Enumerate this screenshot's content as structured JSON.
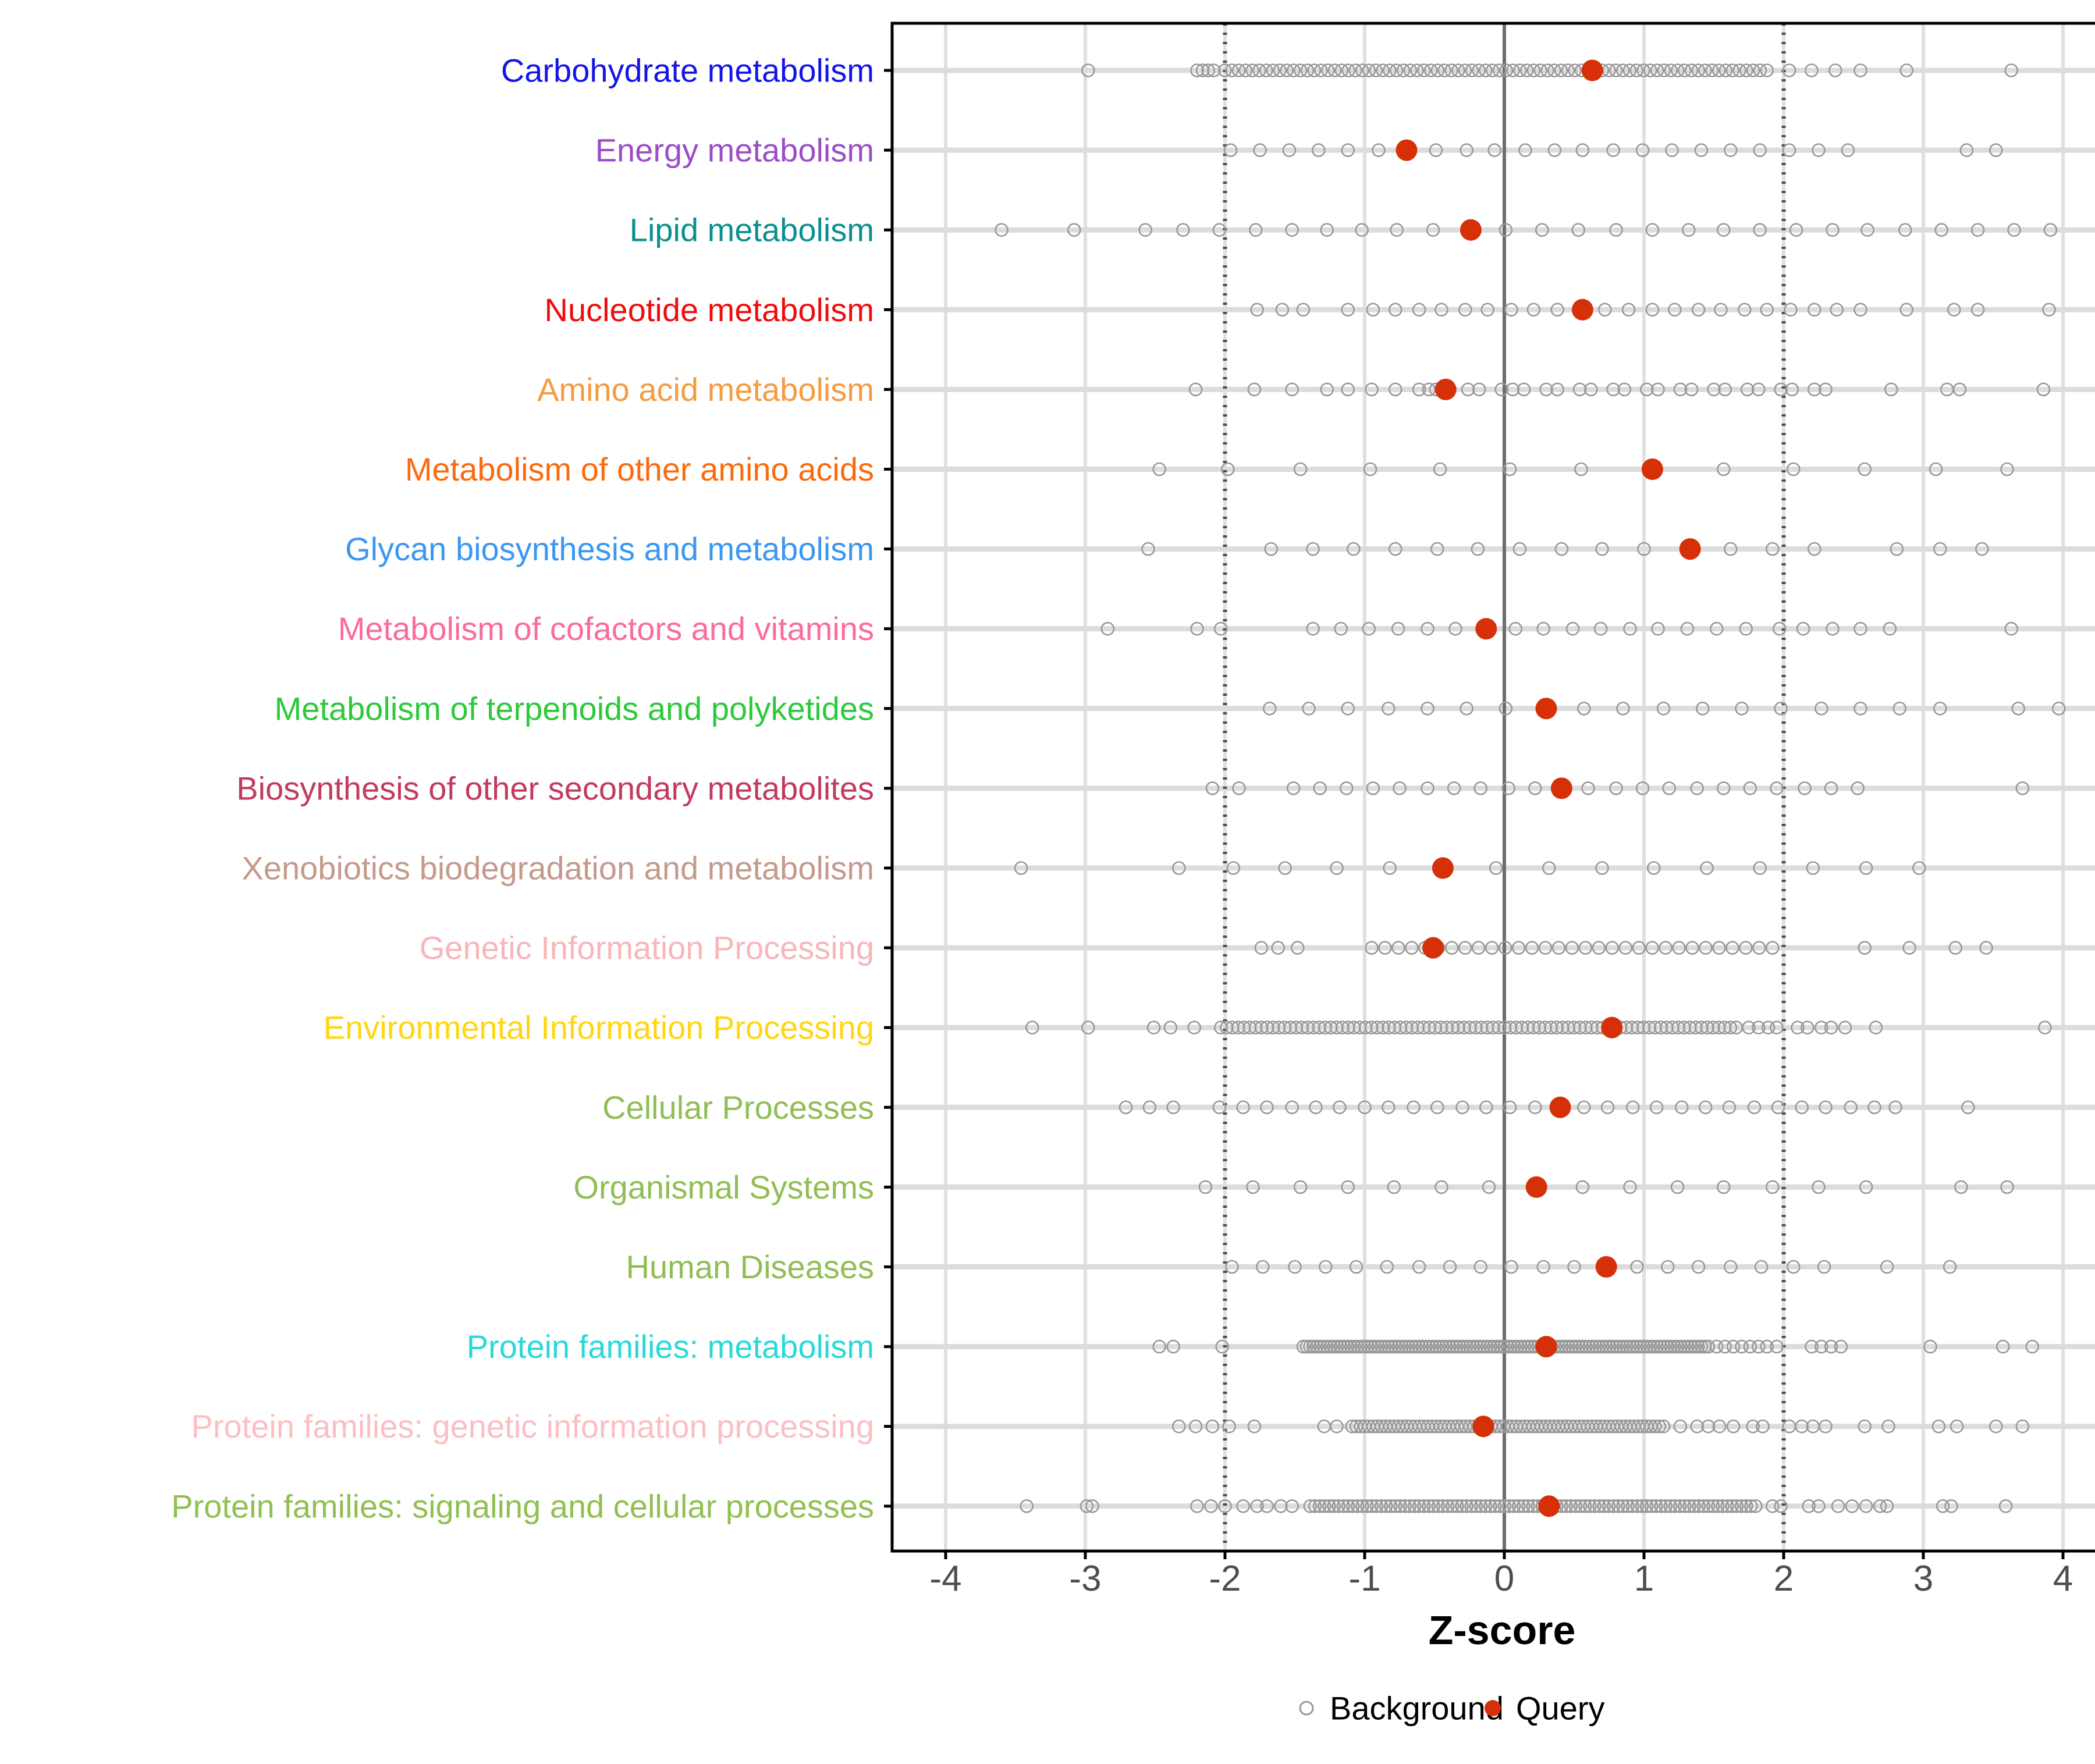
{
  "chart_data": {
    "type": "scatter",
    "title": "",
    "xlabel": "Z-score",
    "xlim": [
      -4.4,
      4.35
    ],
    "x_ticks": [
      -4,
      -3,
      -2,
      -1,
      0,
      1,
      2,
      3,
      4
    ],
    "grid": "on",
    "vlines": [
      {
        "x": -2,
        "style": "dotted"
      },
      {
        "x": 0,
        "style": "solid"
      },
      {
        "x": 2,
        "style": "dotted"
      }
    ],
    "legend_position": "bottom",
    "legend": [
      {
        "label": "Background",
        "marker": "open-circle",
        "color": "#999999"
      },
      {
        "label": "Query",
        "marker": "filled-circle",
        "color": "#D63009"
      }
    ],
    "style_colors": {
      "background_stroke": "#999999",
      "query_fill": "#D63009",
      "gridline": "#E0E0E0",
      "row_gridline": "#DCDCDC",
      "zero_line": "#6E6E6E",
      "dotted_line": "#4D4D4D",
      "tick_label": "#4D4D4D",
      "panel_border": "#000000"
    },
    "rows": [
      {
        "label": "Carbohydrate metabolism",
        "label_color": "#1414E8",
        "query": 0.63,
        "background_points": [
          -2.98,
          2.04,
          2.2,
          2.37,
          2.55,
          2.88,
          3.63
        ],
        "background_bands": [
          [
            -2.2,
            -2.08,
            4
          ],
          [
            -2.0,
            1.88,
            80
          ]
        ]
      },
      {
        "label": "Energy metabolism",
        "label_color": "#9B4DC8",
        "query": -0.7,
        "background_points": [
          -1.96,
          -1.75,
          -1.54,
          -1.33,
          -1.12,
          -0.9,
          -0.49,
          -0.27,
          -0.07,
          0.15,
          0.36,
          0.56,
          0.78,
          0.99,
          1.2,
          1.41,
          1.62,
          1.83,
          2.04,
          2.25,
          2.46,
          3.31,
          3.52
        ],
        "background_bands": []
      },
      {
        "label": "Lipid metabolism",
        "label_color": "#0A8F8F",
        "query": -0.24,
        "background_points": [
          -3.6,
          -3.08,
          -2.57,
          -2.3,
          -2.04,
          -1.78,
          -1.52,
          -1.27,
          -1.02,
          -0.77,
          -0.51,
          0.01,
          0.27,
          0.53,
          0.8,
          1.06,
          1.32,
          1.57,
          1.83,
          2.09,
          2.35,
          2.6,
          2.87,
          3.13,
          3.39,
          3.65,
          3.91
        ],
        "background_bands": []
      },
      {
        "label": "Nucleotide metabolism",
        "label_color": "#F00C0C",
        "query": 0.56,
        "background_points": [
          -1.77,
          -1.59,
          -1.44,
          -1.12,
          -0.94,
          -0.78,
          -0.61,
          -0.45,
          -0.28,
          -0.12,
          0.05,
          0.21,
          0.38,
          0.72,
          0.89,
          1.06,
          1.22,
          1.39,
          1.55,
          1.72,
          1.88,
          2.05,
          2.22,
          2.38,
          2.55,
          2.88,
          3.22,
          3.39,
          3.9
        ],
        "background_bands": []
      },
      {
        "label": "Amino acid metabolism",
        "label_color": "#F59B40",
        "query": -0.42,
        "background_points": [
          -2.21,
          -1.79,
          -1.52,
          -1.27,
          -1.12,
          -0.95,
          -0.78,
          -0.61,
          -0.54,
          -0.49,
          -0.45,
          -0.26,
          -0.18,
          -0.02,
          0.06,
          0.14,
          0.3,
          0.38,
          0.54,
          0.62,
          0.78,
          0.86,
          1.02,
          1.1,
          1.26,
          1.34,
          1.5,
          1.58,
          1.74,
          1.82,
          1.98,
          2.06,
          2.22,
          2.3,
          2.77,
          3.17,
          3.26,
          3.86
        ],
        "background_bands": []
      },
      {
        "label": "Metabolism of other amino acids",
        "label_color": "#FA6B0F",
        "query": 1.06,
        "background_points": [
          -2.47,
          -1.98,
          -1.46,
          -0.96,
          -0.46,
          0.04,
          0.55,
          1.57,
          2.07,
          2.58,
          3.09,
          3.6
        ],
        "background_bands": []
      },
      {
        "label": "Glycan biosynthesis and metabolism",
        "label_color": "#3B97F2",
        "query": 1.33,
        "background_points": [
          -2.55,
          -1.67,
          -1.37,
          -1.08,
          -0.78,
          -0.48,
          -0.19,
          0.11,
          0.41,
          0.7,
          1.0,
          1.62,
          1.92,
          2.22,
          2.81,
          3.12,
          3.42
        ],
        "background_bands": []
      },
      {
        "label": "Metabolism of cofactors and vitamins",
        "label_color": "#FA6B9F",
        "query": -0.13,
        "background_points": [
          -2.84,
          -2.2,
          -2.03,
          -1.37,
          -1.17,
          -0.97,
          -0.76,
          -0.55,
          -0.35,
          0.08,
          0.28,
          0.49,
          0.69,
          0.9,
          1.1,
          1.31,
          1.52,
          1.73,
          1.97,
          2.14,
          2.35,
          2.55,
          2.76,
          3.63
        ],
        "background_bands": []
      },
      {
        "label": "Metabolism of terpenoids and polyketides",
        "label_color": "#2EC93B",
        "query": 0.3,
        "background_points": [
          -1.68,
          -1.4,
          -1.12,
          -0.83,
          -0.55,
          -0.27,
          0.01,
          0.57,
          0.85,
          1.14,
          1.42,
          1.7,
          1.98,
          2.27,
          2.55,
          2.83,
          3.12,
          3.68,
          3.97
        ],
        "background_bands": []
      },
      {
        "label": "Biosynthesis of other secondary metabolites",
        "label_color": "#C23A60",
        "query": 0.41,
        "background_points": [
          -2.09,
          -1.9,
          -1.51,
          -1.32,
          -1.13,
          -0.94,
          -0.75,
          -0.55,
          -0.36,
          -0.17,
          0.03,
          0.22,
          0.6,
          0.8,
          0.99,
          1.18,
          1.38,
          1.57,
          1.76,
          1.95,
          2.15,
          2.34,
          2.53,
          3.71
        ],
        "background_bands": []
      },
      {
        "label": "Xenobiotics biodegradation and metabolism",
        "label_color": "#C49A8C",
        "query": -0.44,
        "background_points": [
          -3.46,
          -2.33,
          -1.94,
          -1.57,
          -1.2,
          -0.82,
          -0.06,
          0.32,
          0.7,
          1.07,
          1.45,
          1.83,
          2.21,
          2.59,
          2.97
        ],
        "background_bands": []
      },
      {
        "label": "Genetic Information Processing",
        "label_color": "#F7B6B9",
        "query": -0.51,
        "background_points": [
          -1.74,
          -1.62,
          -1.48,
          2.58,
          2.9,
          3.23,
          3.45
        ],
        "background_bands": [
          [
            -0.95,
            1.92,
            31
          ]
        ]
      },
      {
        "label": "Environmental Information Processing",
        "label_color": "#FFD60F",
        "query": 0.77,
        "background_points": [
          -3.38,
          -2.98,
          -2.51,
          -2.39,
          -2.22,
          1.75,
          1.82,
          1.89,
          1.95,
          2.1,
          2.17,
          2.27,
          2.34,
          2.44,
          2.66,
          3.87
        ],
        "background_bands": [
          [
            -2.03,
            1.66,
            90
          ]
        ]
      },
      {
        "label": "Cellular Processes",
        "label_color": "#90BE55",
        "query": 0.4,
        "background_points": [
          -2.71,
          -2.54,
          -2.37,
          -2.04,
          -1.87,
          -1.7,
          -1.52,
          -1.35,
          -1.18,
          -1.0,
          -0.83,
          -0.65,
          -0.48,
          -0.3,
          -0.13,
          0.04,
          0.22,
          0.57,
          0.74,
          0.92,
          1.09,
          1.27,
          1.44,
          1.61,
          1.79,
          1.96,
          2.13,
          2.3,
          2.48,
          2.65,
          2.8,
          3.32
        ],
        "background_bands": []
      },
      {
        "label": "Organismal Systems",
        "label_color": "#90BE55",
        "query": 0.23,
        "background_points": [
          -2.14,
          -1.8,
          -1.46,
          -1.12,
          -0.79,
          -0.45,
          -0.11,
          0.56,
          0.9,
          1.24,
          1.57,
          1.92,
          2.25,
          2.59,
          3.27,
          3.6
        ],
        "background_bands": []
      },
      {
        "label": "Human Diseases",
        "label_color": "#90BE55",
        "query": 0.73,
        "background_points": [
          -1.95,
          -1.73,
          -1.5,
          -1.28,
          -1.06,
          -0.84,
          -0.61,
          -0.39,
          -0.17,
          0.05,
          0.28,
          0.5,
          0.95,
          1.17,
          1.39,
          1.62,
          1.84,
          2.07,
          2.29,
          2.74,
          3.19
        ],
        "background_bands": []
      },
      {
        "label": "Protein families: metabolism",
        "label_color": "#2BD8D8",
        "query": 0.3,
        "background_points": [
          -2.47,
          -2.37,
          -2.02,
          1.52,
          1.58,
          1.64,
          1.7,
          1.76,
          1.82,
          1.88,
          1.95,
          2.2,
          2.27,
          2.34,
          2.41,
          3.05,
          3.57,
          3.78
        ],
        "background_bands": [
          [
            -1.44,
            1.46,
            120
          ]
        ]
      },
      {
        "label": "Protein families: genetic information processing",
        "label_color": "#FBBFC2",
        "query": -0.15,
        "background_points": [
          -2.33,
          -2.21,
          -2.09,
          -1.97,
          -1.79,
          -1.29,
          -1.2,
          1.26,
          1.38,
          1.46,
          1.54,
          1.64,
          1.78,
          1.85,
          2.04,
          2.13,
          2.21,
          2.3,
          2.58,
          2.75,
          3.11,
          3.24,
          3.52,
          3.71
        ],
        "background_bands": [
          [
            -1.09,
            1.14,
            75
          ]
        ]
      },
      {
        "label": "Protein families: signaling and cellular processes",
        "label_color": "#90C050",
        "query": 0.32,
        "background_points": [
          -3.42,
          -2.99,
          -2.95,
          -2.2,
          -2.1,
          -2.0,
          -1.87,
          -1.77,
          -1.7,
          -1.6,
          -1.52,
          1.92,
          1.98,
          2.18,
          2.25,
          2.39,
          2.49,
          2.59,
          2.69,
          2.74,
          3.14,
          3.2,
          3.59
        ],
        "background_bands": [
          [
            -1.39,
            1.8,
            95
          ]
        ]
      }
    ]
  }
}
